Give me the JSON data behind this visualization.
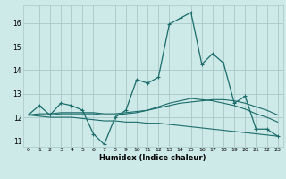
{
  "title": "",
  "xlabel": "Humidex (Indice chaleur)",
  "background_color": "#ceeae8",
  "grid_color": "#aac8c8",
  "line_color": "#1a6b6b",
  "xlim": [
    -0.5,
    23.5
  ],
  "ylim": [
    10.75,
    16.75
  ],
  "yticks": [
    11,
    12,
    13,
    14,
    15,
    16
  ],
  "xticks": [
    0,
    1,
    2,
    3,
    4,
    5,
    6,
    7,
    8,
    9,
    10,
    11,
    12,
    13,
    14,
    15,
    16,
    17,
    18,
    19,
    20,
    21,
    22,
    23
  ],
  "series0": [
    12.1,
    12.5,
    12.1,
    12.6,
    12.5,
    12.3,
    11.3,
    10.85,
    12.0,
    12.3,
    13.6,
    13.45,
    13.7,
    15.95,
    16.2,
    16.45,
    14.25,
    14.7,
    14.3,
    12.6,
    12.9,
    11.5,
    11.5,
    11.2
  ],
  "series1": [
    12.1,
    12.15,
    12.15,
    12.2,
    12.2,
    12.2,
    12.2,
    12.15,
    12.15,
    12.2,
    12.25,
    12.3,
    12.4,
    12.5,
    12.6,
    12.65,
    12.7,
    12.75,
    12.75,
    12.7,
    12.6,
    12.45,
    12.3,
    12.1
  ],
  "series2": [
    12.1,
    12.1,
    12.1,
    12.15,
    12.15,
    12.15,
    12.15,
    12.1,
    12.1,
    12.15,
    12.2,
    12.3,
    12.45,
    12.6,
    12.7,
    12.8,
    12.75,
    12.7,
    12.6,
    12.5,
    12.35,
    12.15,
    12.0,
    11.8
  ],
  "series3": [
    12.1,
    12.05,
    12.0,
    12.0,
    12.0,
    11.95,
    11.9,
    11.85,
    11.85,
    11.8,
    11.8,
    11.75,
    11.75,
    11.7,
    11.65,
    11.6,
    11.55,
    11.5,
    11.45,
    11.4,
    11.35,
    11.3,
    11.25,
    11.2
  ]
}
